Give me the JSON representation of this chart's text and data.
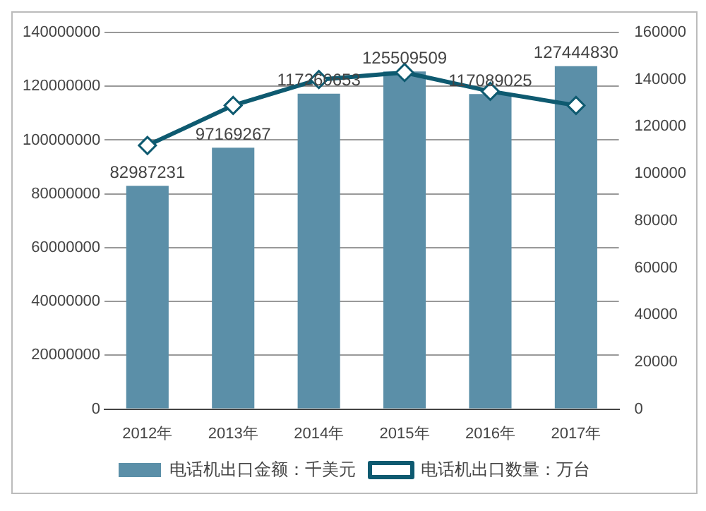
{
  "chart_data": {
    "type": "bar",
    "categories": [
      "2012年",
      "2013年",
      "2014年",
      "2015年",
      "2016年",
      "2017年"
    ],
    "series": [
      {
        "name": "电话机出口金额：千美元",
        "color": "#5b8fa8",
        "values": [
          82987231,
          97169267,
          117260653,
          125509509,
          117089025,
          127444830
        ],
        "value_labels": [
          "82987231",
          "97169267",
          "117260653",
          "125509509",
          "117089025",
          "127444830"
        ]
      },
      {
        "name": "电话机出口数量：万台",
        "type": "line",
        "axis": "y2",
        "color": "#0e5a70",
        "marker": "diamond",
        "values": [
          112000,
          129000,
          140000,
          143000,
          135000,
          129000
        ]
      }
    ],
    "ylim": [
      0,
      140000000
    ],
    "yticks": [
      0,
      20000000,
      40000000,
      60000000,
      80000000,
      100000000,
      120000000,
      140000000
    ],
    "y2lim": [
      0,
      160000
    ],
    "y2ticks": [
      0,
      20000,
      40000,
      60000,
      80000,
      100000,
      120000,
      140000,
      160000
    ],
    "grid": "y",
    "legend": "bottom"
  }
}
